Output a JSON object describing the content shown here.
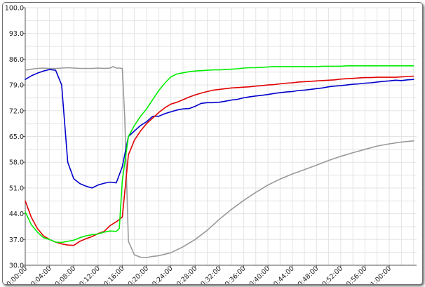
{
  "chart_data": {
    "type": "line",
    "title": "",
    "xlabel": "",
    "ylabel": "",
    "ylim": [
      30,
      100
    ],
    "xlim_minutes": [
      0,
      64.5
    ],
    "x_tick_labels": [
      "0:00:00",
      "0:04:00",
      "0:08:00",
      "0:12:00",
      "0:16:00",
      "0:20:00",
      "0:24:00",
      "0:28:00",
      "0:32:00",
      "0:36:00",
      "0:40:00",
      "0:44:00",
      "0:48:00",
      "0:52:00",
      "0:56:00",
      "1:00:00"
    ],
    "x_tick_minutes": [
      0,
      4,
      8,
      12,
      16,
      20,
      24,
      28,
      32,
      36,
      40,
      44,
      48,
      52,
      56,
      60
    ],
    "y_tick_labels": [
      "30.0",
      "37.0",
      "44.0",
      "51.0",
      "58.0",
      "65.0",
      "72.0",
      "79.0",
      "86.0",
      "93.0",
      "100.0"
    ],
    "y_tick_values": [
      30,
      37,
      44,
      51,
      58,
      65,
      72,
      79,
      86,
      93,
      100
    ],
    "grid": true,
    "series": [
      {
        "name": "gray",
        "color": "#999999",
        "x": [
          0,
          1,
          2,
          3,
          4,
          5,
          6,
          7,
          8,
          9,
          10,
          11,
          12,
          13,
          14,
          14.5,
          15,
          15.5,
          16,
          16.4,
          17,
          18,
          19,
          20,
          21,
          22,
          23,
          24,
          26,
          28,
          30,
          32,
          34,
          36,
          38,
          40,
          42,
          44,
          46,
          48,
          50,
          52,
          54,
          56,
          58,
          60,
          62,
          64
        ],
        "y": [
          83,
          83.3,
          83.5,
          83.6,
          83.5,
          83.5,
          83.6,
          83.7,
          83.6,
          83.5,
          83.5,
          83.5,
          83.6,
          83.5,
          83.6,
          84,
          83.6,
          83.6,
          83.5,
          70,
          36.5,
          32.8,
          32.2,
          32.1,
          32.4,
          32.6,
          33,
          33.4,
          35,
          37,
          39.5,
          42.5,
          45.2,
          47.6,
          49.8,
          51.8,
          53.4,
          54.8,
          56,
          57.2,
          58.5,
          59.6,
          60.6,
          61.5,
          62.4,
          63,
          63.5,
          63.8
        ]
      },
      {
        "name": "blue",
        "color": "#0000cc",
        "x": [
          0,
          1,
          2,
          3,
          4,
          5,
          6,
          7,
          8,
          9,
          10,
          11,
          12,
          13,
          14,
          15,
          16,
          17,
          18,
          19,
          20,
          21,
          22,
          23,
          24,
          25,
          26,
          27,
          28,
          29,
          30,
          31,
          32,
          33,
          34,
          35,
          36,
          37,
          38,
          39,
          40,
          41,
          42,
          43,
          44,
          45,
          46,
          47,
          48,
          49,
          50,
          51,
          52,
          53,
          54,
          55,
          56,
          57,
          58,
          59,
          60,
          61,
          62,
          63,
          64
        ],
        "y": [
          80.5,
          81.5,
          82.2,
          82.8,
          83.2,
          83,
          79,
          58,
          53.5,
          52.2,
          51.5,
          51,
          51.8,
          52.3,
          52.6,
          52.4,
          56.8,
          65,
          66.5,
          68,
          69,
          70.5,
          70.5,
          71.2,
          71.7,
          72.2,
          72.5,
          72.6,
          73.2,
          74,
          74.2,
          74.2,
          74.3,
          74.6,
          74.9,
          75.1,
          75.5,
          75.8,
          76,
          76.2,
          76.4,
          76.7,
          76.9,
          77.1,
          77.2,
          77.5,
          77.6,
          77.8,
          78,
          78.2,
          78.5,
          78.7,
          78.8,
          79,
          79.2,
          79.3,
          79.5,
          79.6,
          79.8,
          80,
          80.1,
          80.3,
          80.2,
          80.4,
          80.5
        ]
      },
      {
        "name": "red",
        "color": "#e00000",
        "x": [
          0,
          1,
          2,
          3,
          4,
          5,
          6,
          7,
          8,
          9,
          10,
          11,
          12,
          13,
          14,
          15,
          16,
          17,
          18,
          19,
          20,
          21,
          22,
          23,
          24,
          25,
          26,
          27,
          28,
          29,
          30,
          31,
          32,
          33,
          34,
          35,
          36,
          37,
          38,
          39,
          40,
          41,
          42,
          43,
          44,
          45,
          46,
          47,
          48,
          49,
          50,
          51,
          52,
          53,
          54,
          55,
          56,
          57,
          58,
          59,
          60,
          61,
          62,
          63,
          64
        ],
        "y": [
          47.5,
          43,
          40,
          38,
          37,
          36.3,
          35.8,
          35.5,
          35.4,
          36.5,
          37.2,
          37.8,
          38.6,
          39.2,
          40.8,
          41.8,
          43.1,
          60,
          64,
          66.5,
          68.5,
          70,
          71.5,
          72.8,
          73.8,
          74.3,
          75,
          75.7,
          76.3,
          76.8,
          77.2,
          77.6,
          77.8,
          78,
          78.2,
          78.3,
          78.4,
          78.5,
          78.7,
          78.8,
          79,
          79.1,
          79.3,
          79.5,
          79.6,
          79.8,
          79.9,
          80,
          80.1,
          80.2,
          80.3,
          80.4,
          80.6,
          80.7,
          80.8,
          80.9,
          81,
          81,
          81.1,
          81.1,
          81.1,
          81.1,
          81.2,
          81.3,
          81.4
        ]
      },
      {
        "name": "green",
        "color": "#00ee00",
        "x": [
          0,
          1,
          2,
          3,
          4,
          5,
          6,
          7,
          8,
          9,
          10,
          11,
          12,
          13,
          14,
          15,
          15.5,
          16,
          17,
          18,
          19,
          20,
          21,
          22,
          23,
          24,
          25,
          26,
          27,
          28,
          29,
          30,
          31,
          32,
          33,
          34,
          35,
          36,
          37,
          38,
          39,
          40,
          41,
          42,
          43,
          44,
          45,
          46,
          47,
          48,
          49,
          50,
          51,
          52,
          53,
          54,
          55,
          56,
          57,
          58,
          59,
          60,
          61,
          62,
          63,
          64
        ],
        "y": [
          44.5,
          41,
          39,
          37.5,
          37,
          36.3,
          36.2,
          36.5,
          36.8,
          37.5,
          38,
          38.3,
          38.5,
          39,
          39.3,
          39.2,
          40,
          53,
          65,
          68,
          70.5,
          72.5,
          75,
          77.5,
          79.5,
          81.2,
          82,
          82.3,
          82.6,
          82.8,
          82.9,
          83,
          83.1,
          83.1,
          83.2,
          83.3,
          83.4,
          83.6,
          83.7,
          83.7,
          83.8,
          83.9,
          84,
          84,
          84,
          84,
          84,
          84,
          84,
          84,
          84.1,
          84.1,
          84.1,
          84.1,
          84.2,
          84.2,
          84.2,
          84.2,
          84.2,
          84.2,
          84.2,
          84.2,
          84.2,
          84.2,
          84.2,
          84.2
        ]
      }
    ]
  }
}
